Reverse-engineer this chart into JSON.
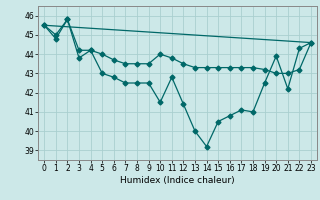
{
  "xlabel": "Humidex (Indice chaleur)",
  "xlim": [
    -0.5,
    23.5
  ],
  "ylim": [
    38.5,
    46.5
  ],
  "yticks": [
    39,
    40,
    41,
    42,
    43,
    44,
    45,
    46
  ],
  "xticks": [
    0,
    1,
    2,
    3,
    4,
    5,
    6,
    7,
    8,
    9,
    10,
    11,
    12,
    13,
    14,
    15,
    16,
    17,
    18,
    19,
    20,
    21,
    22,
    23
  ],
  "bg_color": "#cce8e8",
  "line_color": "#006868",
  "grid_color": "#aacfcf",
  "series1_x": [
    0,
    1,
    2,
    3,
    4,
    5,
    6,
    7,
    8,
    9,
    10,
    11,
    12,
    13,
    14,
    15,
    16,
    17,
    18,
    19,
    20,
    21,
    22,
    23
  ],
  "series1_y": [
    45.5,
    45.0,
    45.8,
    43.8,
    44.2,
    43.0,
    42.8,
    42.5,
    42.5,
    42.5,
    41.5,
    42.8,
    41.4,
    40.0,
    39.2,
    40.5,
    40.8,
    41.1,
    41.0,
    42.5,
    43.9,
    42.2,
    44.3,
    44.6
  ],
  "series2_x": [
    0,
    23
  ],
  "series2_y": [
    45.5,
    44.6
  ],
  "series3_x": [
    0,
    1,
    2,
    3,
    4,
    5,
    6,
    7,
    8,
    9,
    10,
    11,
    12,
    13,
    14,
    15,
    16,
    17,
    18,
    19,
    20,
    21,
    22,
    23
  ],
  "series3_y": [
    45.5,
    44.8,
    45.8,
    44.2,
    44.2,
    44.0,
    43.7,
    43.5,
    43.5,
    43.5,
    44.0,
    43.8,
    43.5,
    43.3,
    43.3,
    43.3,
    43.3,
    43.3,
    43.3,
    43.2,
    43.0,
    43.0,
    43.2,
    44.6
  ]
}
